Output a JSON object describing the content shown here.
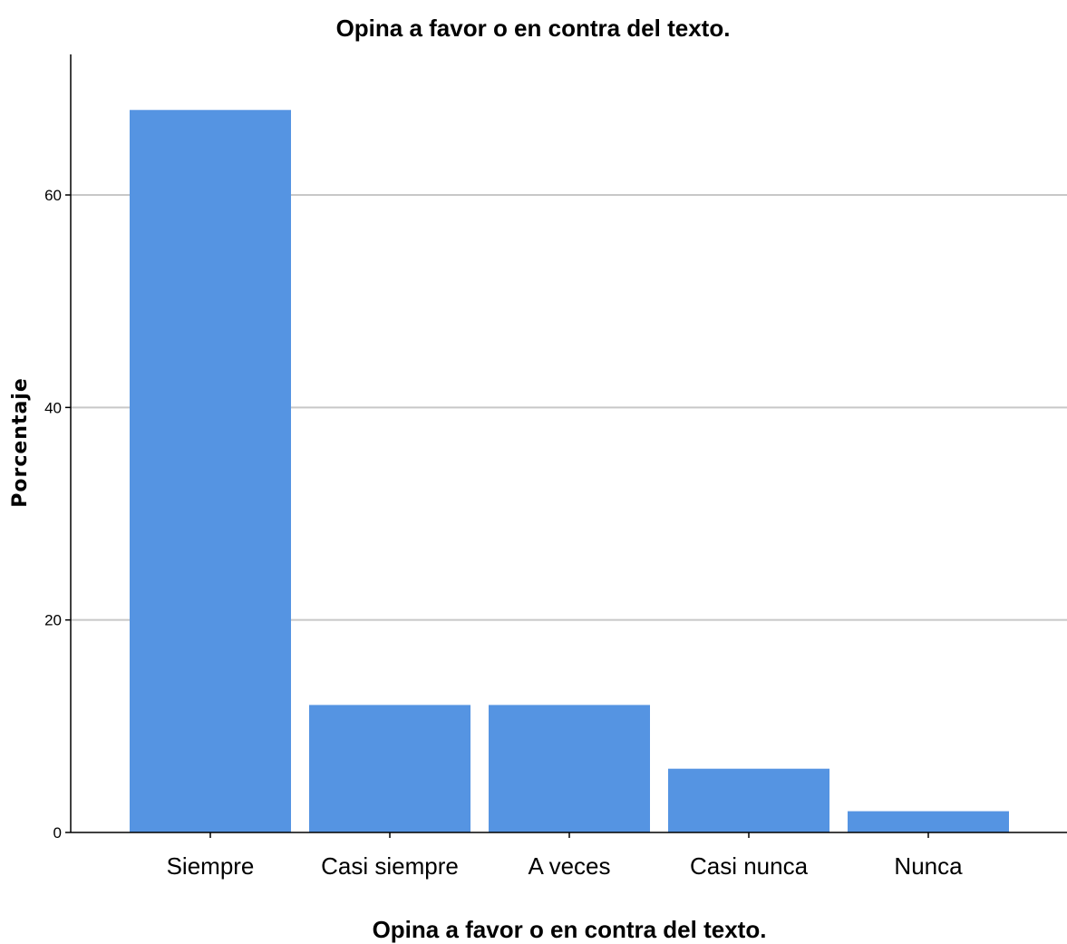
{
  "chart_data": {
    "type": "bar",
    "title": "Opina a favor o en contra del texto.",
    "xlabel": "Opina a favor o en contra del texto.",
    "ylabel": "Porcentaje",
    "categories": [
      "Siempre",
      "Casi siempre",
      "A veces",
      "Casi nunca",
      "Nunca"
    ],
    "values": [
      68,
      12,
      12,
      6,
      2
    ],
    "ylim": [
      0,
      73.5
    ],
    "yticks": [
      "0",
      "20",
      "40",
      "60"
    ],
    "grid": "horizontal",
    "legend": "none",
    "bar_color": "#5594e2",
    "grid_color": "#c8c8c8",
    "axis_color": "#000000"
  }
}
